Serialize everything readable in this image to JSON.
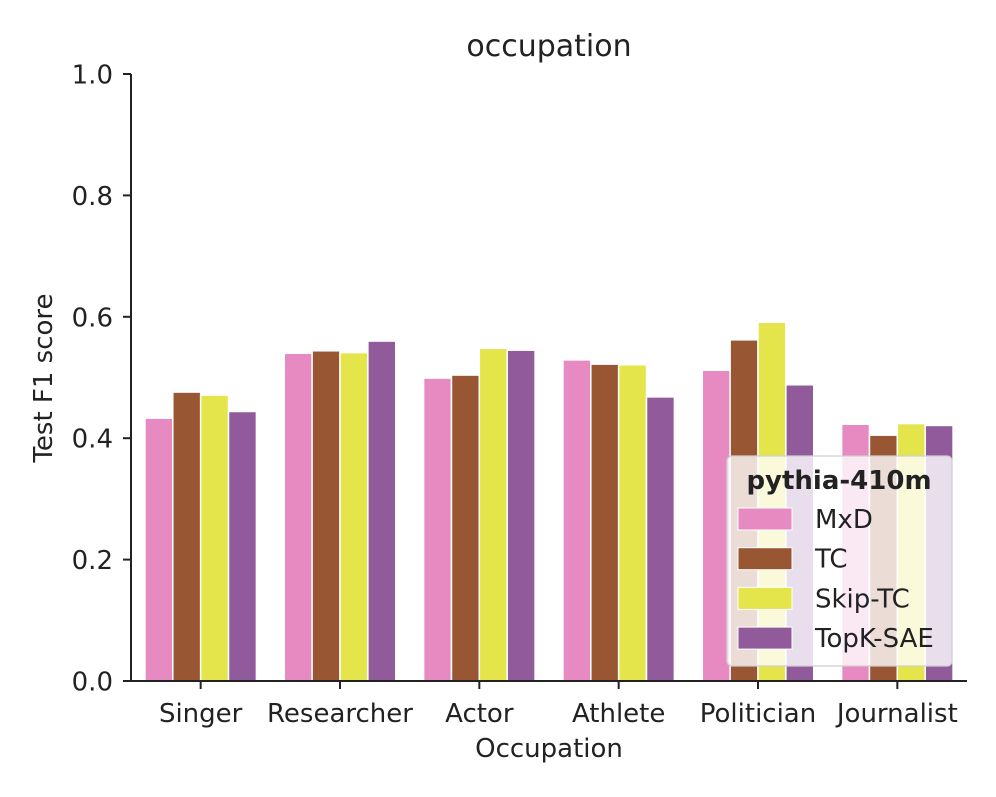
{
  "chart_data": {
    "type": "bar",
    "title": "occupation",
    "xlabel": "Occupation",
    "ylabel": "Test F1 score",
    "ylim": [
      0,
      1.0
    ],
    "yticks": [
      "0.0",
      "0.2",
      "0.4",
      "0.6",
      "0.8",
      "1.0"
    ],
    "grid": false,
    "categories": [
      "Singer",
      "Researcher",
      "Actor",
      "Athlete",
      "Politician",
      "Journalist"
    ],
    "legend": {
      "title": "pythia-410m",
      "placement": "lower-right"
    },
    "series": [
      {
        "name": "MxD",
        "color": "#e78ac1",
        "values": [
          0.433,
          0.54,
          0.499,
          0.529,
          0.512,
          0.423
        ]
      },
      {
        "name": "TC",
        "color": "#995633",
        "values": [
          0.476,
          0.544,
          0.504,
          0.522,
          0.562,
          0.405
        ]
      },
      {
        "name": "Skip-TC",
        "color": "#e4e44b",
        "values": [
          0.471,
          0.541,
          0.548,
          0.521,
          0.591,
          0.424
        ]
      },
      {
        "name": "TopK-SAE",
        "color": "#915a9b",
        "values": [
          0.444,
          0.56,
          0.545,
          0.468,
          0.488,
          0.421
        ]
      }
    ]
  }
}
